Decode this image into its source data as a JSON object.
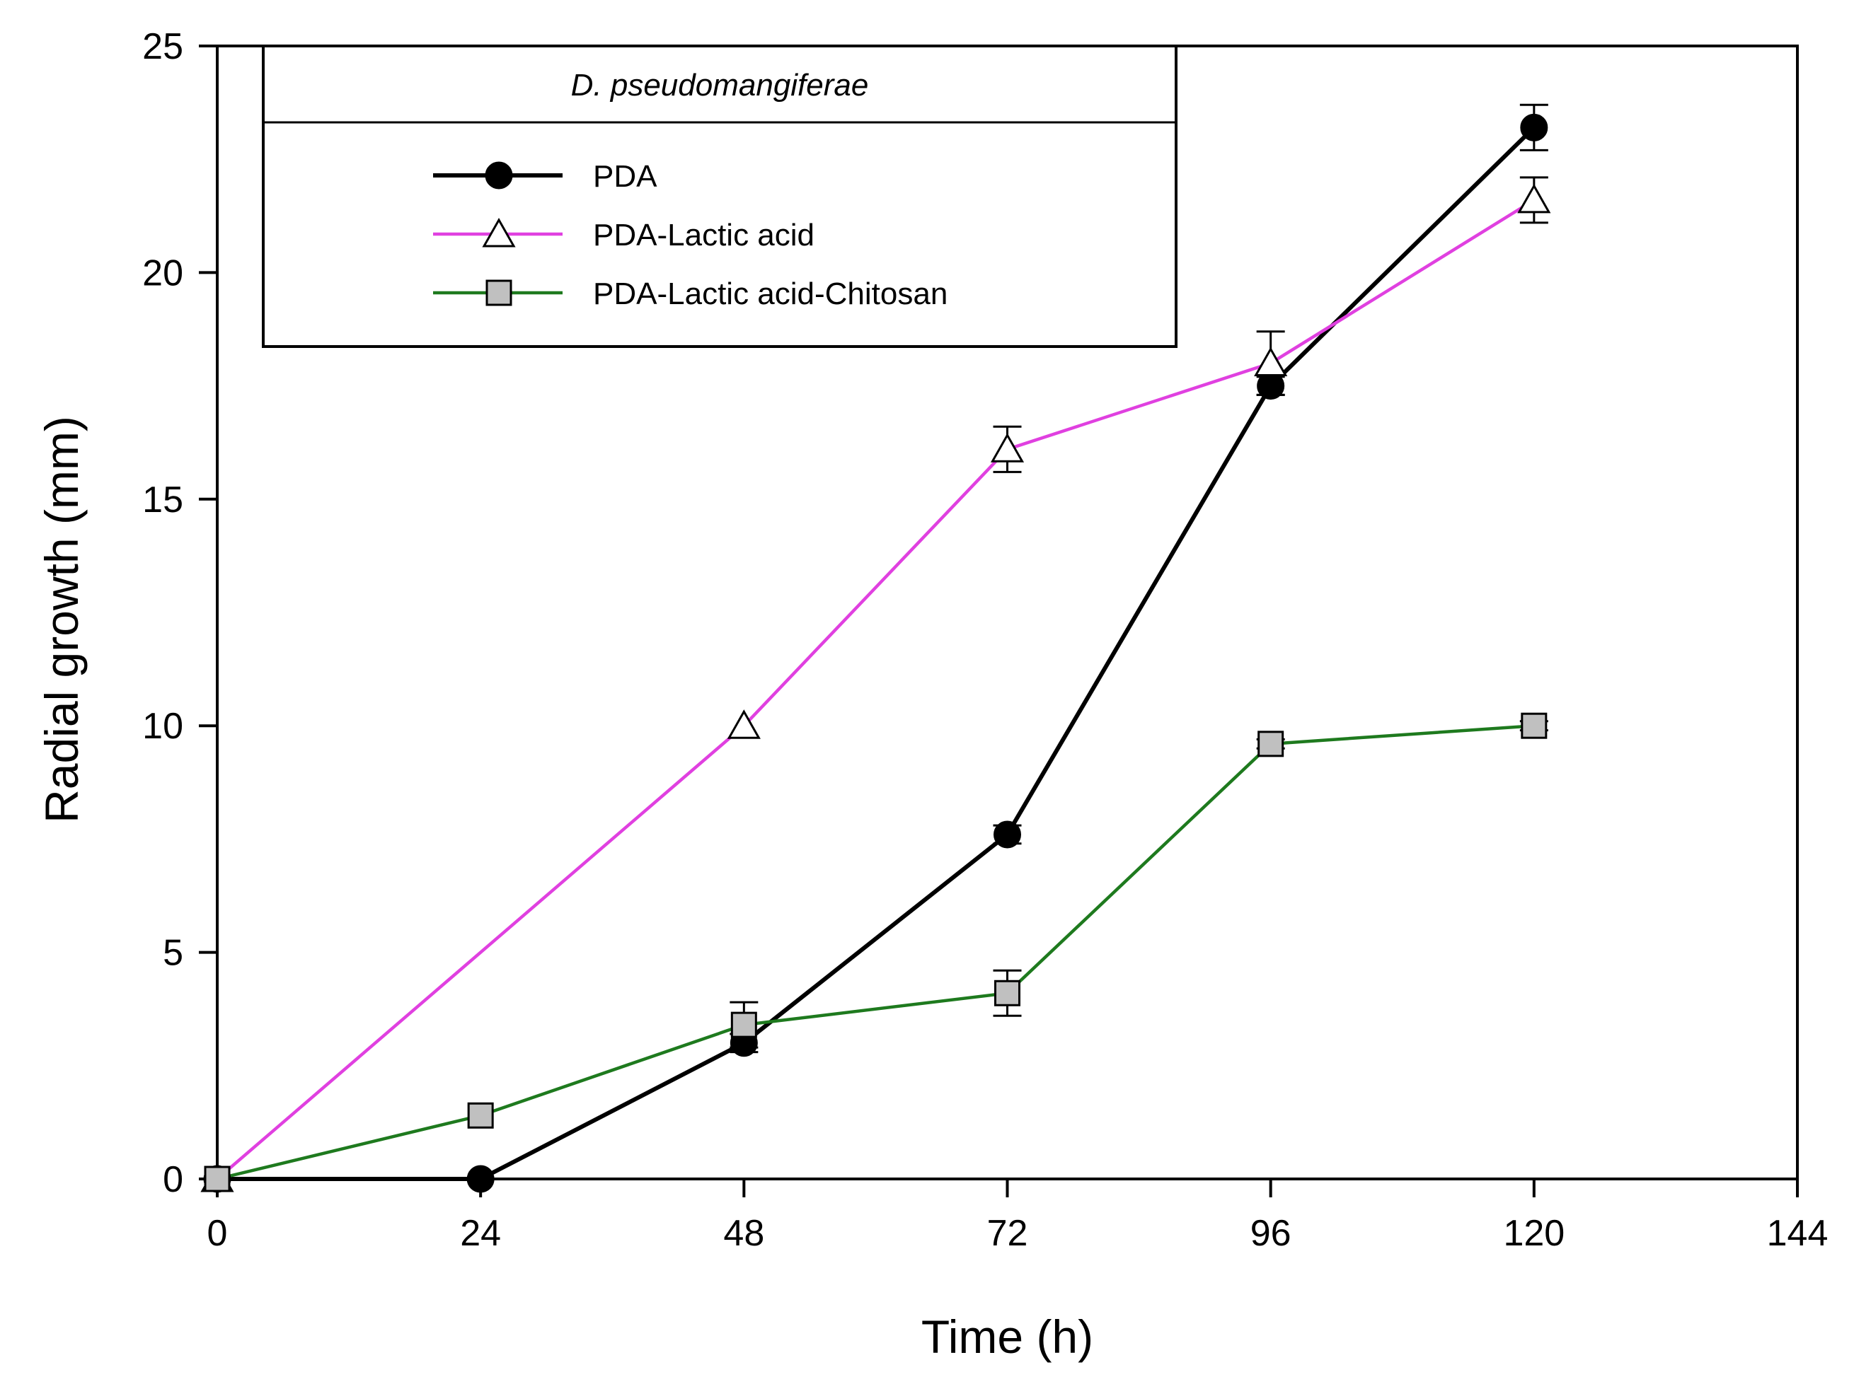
{
  "chart_data": {
    "type": "line",
    "title": "D. pseudomangiferae",
    "xlabel": "Time (h)",
    "ylabel": "Radial growth (mm)",
    "xlim": [
      0,
      144
    ],
    "ylim": [
      0,
      25
    ],
    "xticks": [
      "0",
      "24",
      "48",
      "72",
      "96",
      "120",
      "144"
    ],
    "yticks": [
      "0",
      "5",
      "10",
      "15",
      "20",
      "25"
    ],
    "x": [
      0,
      24,
      48,
      72,
      96,
      120
    ],
    "grid": false,
    "legend_position": "top-left",
    "series": [
      {
        "name": "PDA",
        "color": "#000000",
        "marker": "circle-filled",
        "values": [
          0,
          0,
          3.0,
          7.6,
          17.5,
          23.2
        ],
        "errors": [
          0,
          0,
          0.2,
          0.2,
          0.2,
          0.5
        ]
      },
      {
        "name": "PDA-Lactic acid",
        "color": "#e040e0",
        "marker": "triangle-open",
        "values": [
          0,
          null,
          10.0,
          16.1,
          18.0,
          21.6
        ],
        "errors": [
          0,
          0,
          0,
          0.5,
          0.7,
          0.5
        ]
      },
      {
        "name": "PDA-Lactic acid-Chitosan",
        "color": "#1e7a1e",
        "marker": "square-gray",
        "values": [
          0,
          1.4,
          3.4,
          4.1,
          9.6,
          10.0
        ],
        "errors": [
          0,
          0,
          0.5,
          0.5,
          0.1,
          0.1
        ]
      }
    ]
  }
}
